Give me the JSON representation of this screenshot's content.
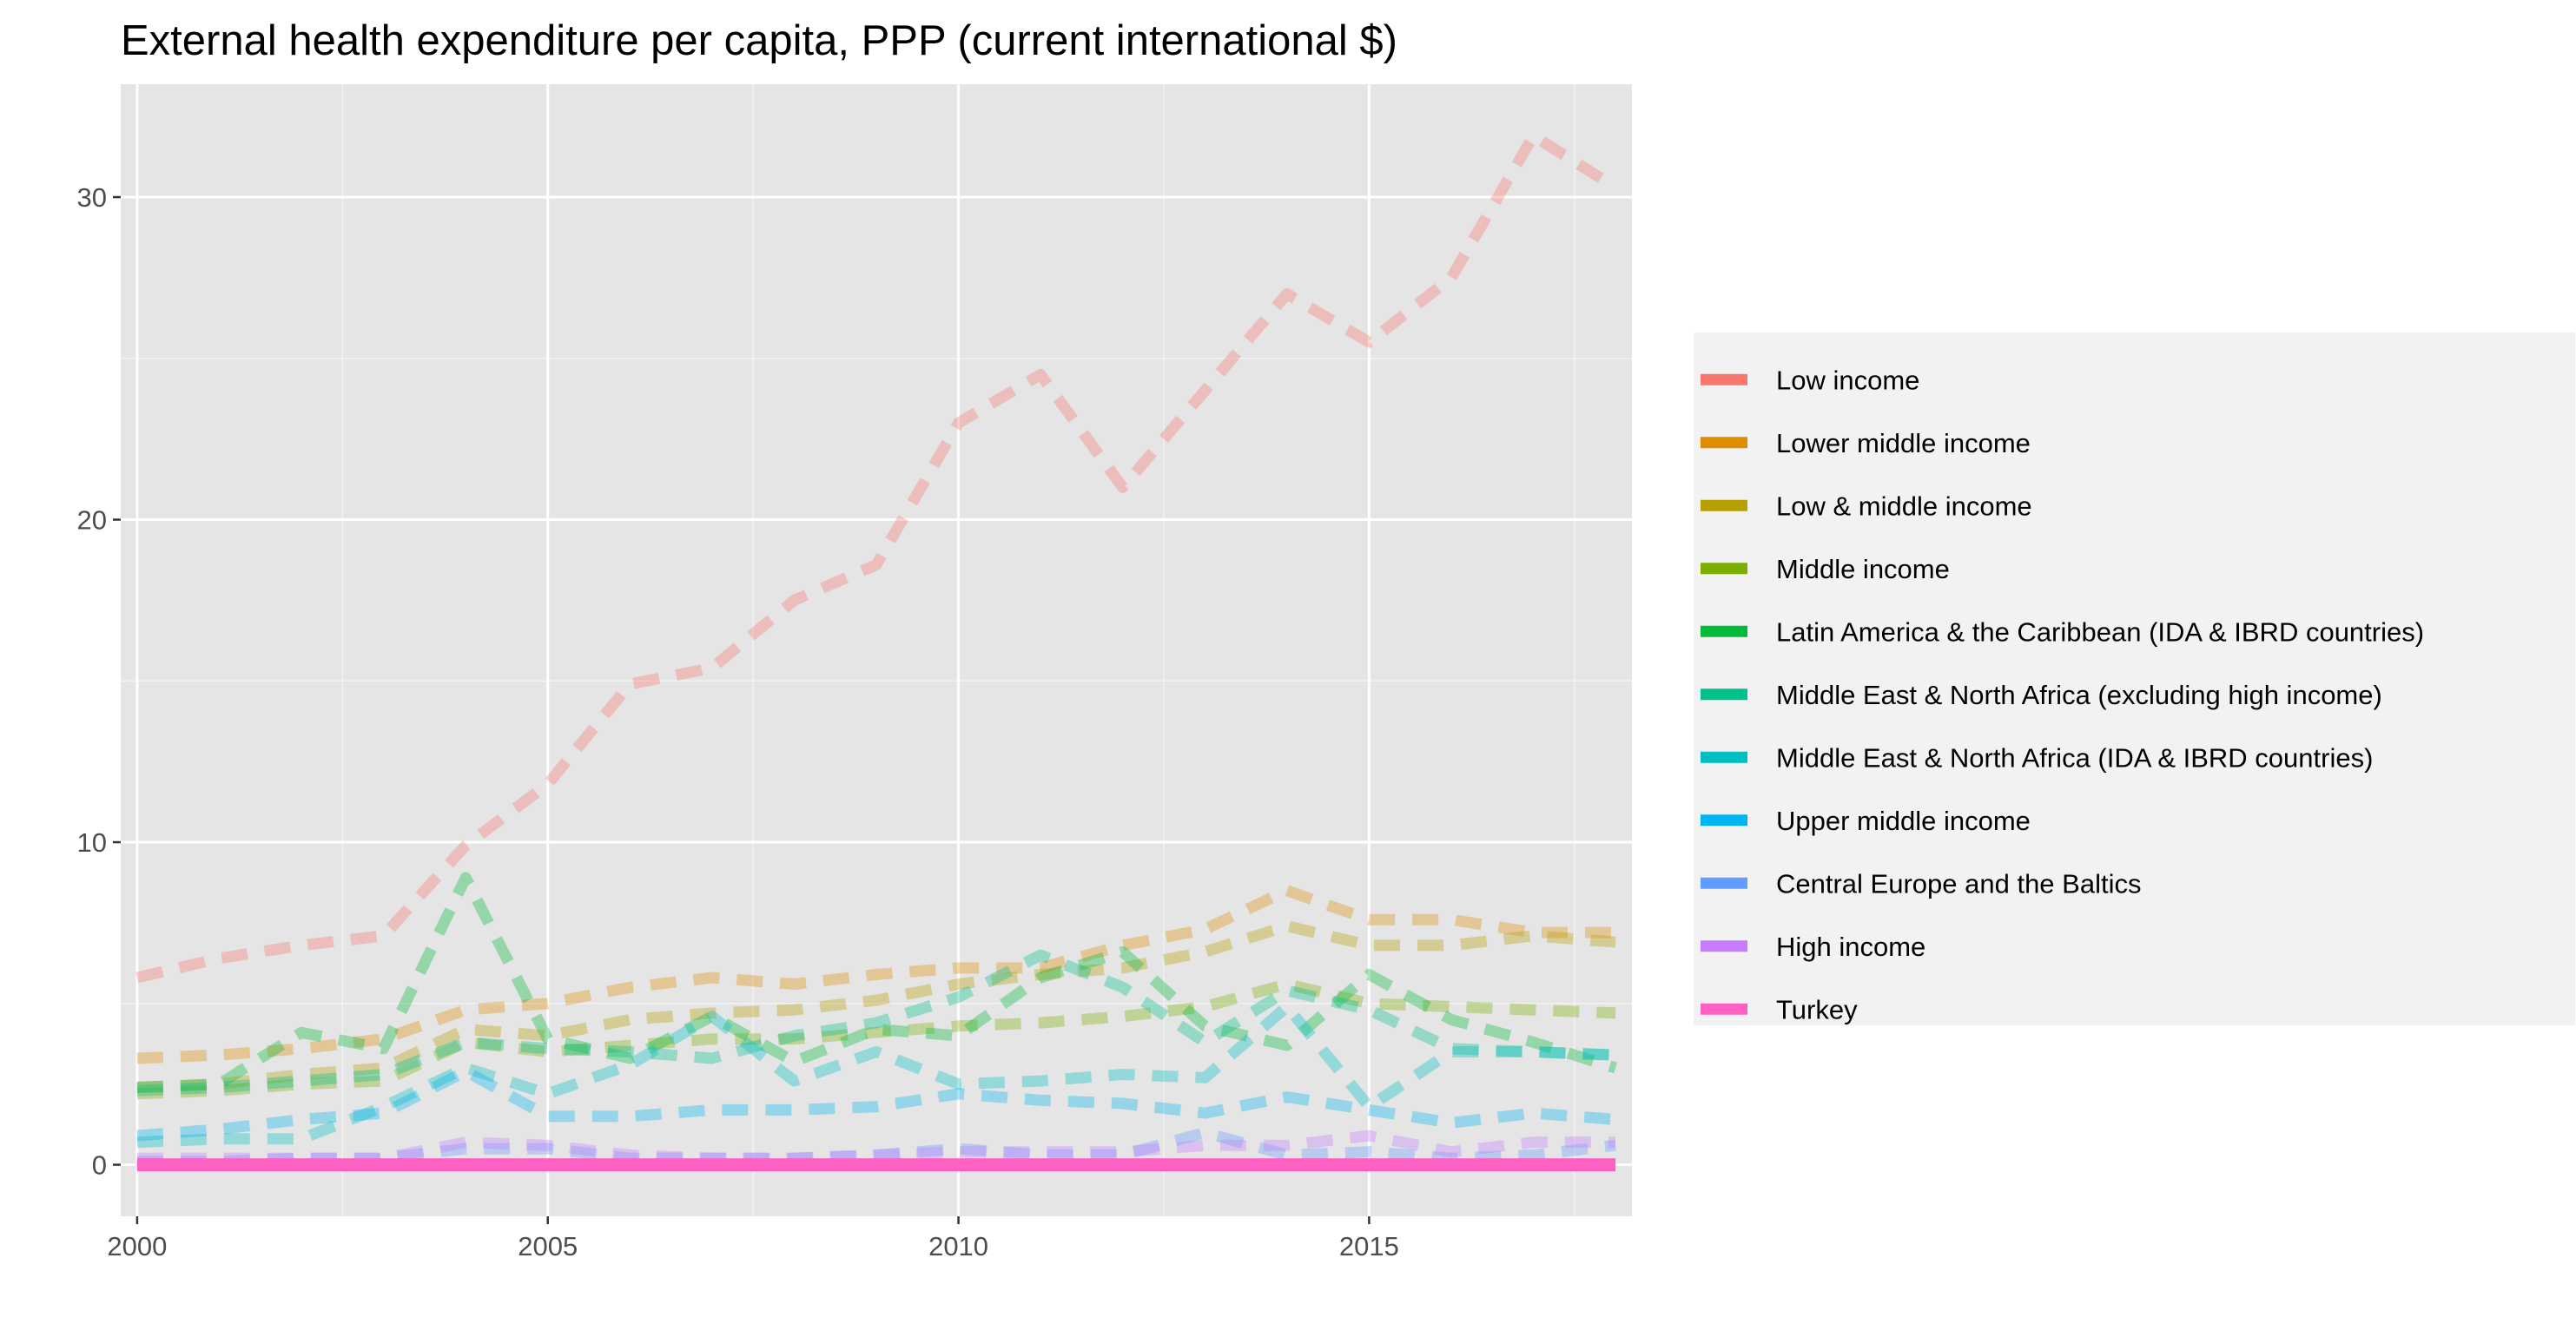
{
  "chart_data": {
    "type": "line",
    "title": "External health expenditure per capita, PPP (current international $)",
    "xlabel": "",
    "ylabel": "",
    "xlim": [
      1999.8,
      2018.2
    ],
    "ylim": [
      -1.6,
      33.5
    ],
    "x_ticks": [
      2000,
      2005,
      2010,
      2015
    ],
    "y_ticks": [
      0,
      10,
      20,
      30
    ],
    "grid": true,
    "legend_position": "right",
    "x": [
      2000,
      2001,
      2002,
      2003,
      2004,
      2005,
      2006,
      2007,
      2008,
      2009,
      2010,
      2011,
      2012,
      2013,
      2014,
      2015,
      2016,
      2017,
      2018
    ],
    "series": [
      {
        "name": "Low income",
        "color": "#F8766D",
        "style": "dashed",
        "highlight": false,
        "values": [
          5.8,
          6.4,
          6.8,
          7.1,
          9.9,
          11.8,
          14.9,
          15.4,
          17.5,
          18.6,
          23.0,
          24.5,
          21.0,
          24.0,
          27.0,
          25.5,
          27.5,
          31.9,
          30.3
        ]
      },
      {
        "name": "Lower middle income",
        "color": "#DE8C00",
        "style": "dashed",
        "highlight": false,
        "values": [
          3.3,
          3.4,
          3.6,
          3.9,
          4.8,
          5.0,
          5.5,
          5.8,
          5.6,
          5.9,
          6.1,
          6.1,
          6.8,
          7.3,
          8.5,
          7.6,
          7.6,
          7.2,
          7.2
        ]
      },
      {
        "name": "Low & middle income",
        "color": "#B79F00",
        "style": "dashed",
        "highlight": false,
        "values": [
          2.4,
          2.5,
          2.8,
          3.0,
          4.2,
          4.0,
          4.5,
          4.7,
          4.8,
          5.1,
          5.6,
          5.9,
          6.1,
          6.6,
          7.4,
          6.8,
          6.8,
          7.1,
          6.9
        ]
      },
      {
        "name": "Middle income",
        "color": "#7CAE00",
        "style": "dashed",
        "highlight": false,
        "values": [
          2.2,
          2.3,
          2.5,
          2.6,
          3.8,
          3.5,
          3.7,
          3.9,
          3.9,
          4.1,
          4.3,
          4.4,
          4.6,
          4.9,
          5.6,
          5.0,
          4.9,
          4.8,
          4.7
        ]
      },
      {
        "name": "Latin America & the Caribbean (IDA & IBRD countries)",
        "color": "#00BA38",
        "style": "dashed",
        "highlight": false,
        "values": [
          2.4,
          2.5,
          4.1,
          3.6,
          8.9,
          3.9,
          3.3,
          4.6,
          3.2,
          4.2,
          4.0,
          5.8,
          6.6,
          4.3,
          3.7,
          5.9,
          4.5,
          3.8,
          3.0
        ]
      },
      {
        "name": "Middle East & North Africa (excluding high income)",
        "color": "#00C08B",
        "style": "dashed",
        "highlight": false,
        "values": [
          2.3,
          2.4,
          2.6,
          2.8,
          3.8,
          3.6,
          3.5,
          3.3,
          4.0,
          4.4,
          5.2,
          6.5,
          5.5,
          3.8,
          5.4,
          4.8,
          3.6,
          3.5,
          3.4
        ]
      },
      {
        "name": "Middle East & North Africa (IDA & IBRD countries)",
        "color": "#00BFC4",
        "style": "dashed",
        "highlight": false,
        "values": [
          0.7,
          0.8,
          0.8,
          1.8,
          3.0,
          2.2,
          3.1,
          4.6,
          2.6,
          3.5,
          2.5,
          2.6,
          2.8,
          2.7,
          4.9,
          1.8,
          3.5,
          3.5,
          3.4
        ]
      },
      {
        "name": "Upper middle income",
        "color": "#00B4F0",
        "style": "dashed",
        "highlight": false,
        "values": [
          0.9,
          1.1,
          1.4,
          1.6,
          2.9,
          1.5,
          1.5,
          1.7,
          1.7,
          1.8,
          2.2,
          2.0,
          1.9,
          1.6,
          2.1,
          1.7,
          1.3,
          1.6,
          1.4
        ]
      },
      {
        "name": "Central Europe and the Baltics",
        "color": "#619CFF",
        "style": "dashed",
        "highlight": false,
        "values": [
          0.1,
          0.1,
          0.2,
          0.2,
          0.5,
          0.5,
          0.2,
          0.2,
          0.2,
          0.3,
          0.5,
          0.3,
          0.3,
          1.0,
          0.3,
          0.4,
          0.2,
          0.3,
          0.6
        ]
      },
      {
        "name": "High income",
        "color": "#C77CFF",
        "style": "dashed",
        "highlight": false,
        "values": [
          0.2,
          0.2,
          0.2,
          0.2,
          0.7,
          0.6,
          0.3,
          0.2,
          0.2,
          0.3,
          0.4,
          0.4,
          0.4,
          0.6,
          0.6,
          0.9,
          0.4,
          0.7,
          0.7
        ]
      },
      {
        "name": "Turkey",
        "color": "#FF61C3",
        "style": "solid",
        "highlight": true,
        "values": [
          0.0,
          0.0,
          0.0,
          0.0,
          0.0,
          0.0,
          0.0,
          0.0,
          0.0,
          0.0,
          0.0,
          0.0,
          0.0,
          0.0,
          0.0,
          0.0,
          0.0,
          0.0,
          0.0
        ]
      }
    ],
    "legend_colors": [
      "#F8766D",
      "#DE8C00",
      "#B79F00",
      "#7CAE00",
      "#00BA38",
      "#00C08B",
      "#00BFC4",
      "#00B4F0",
      "#619CFF",
      "#C77CFF",
      "#FF61C3"
    ]
  }
}
